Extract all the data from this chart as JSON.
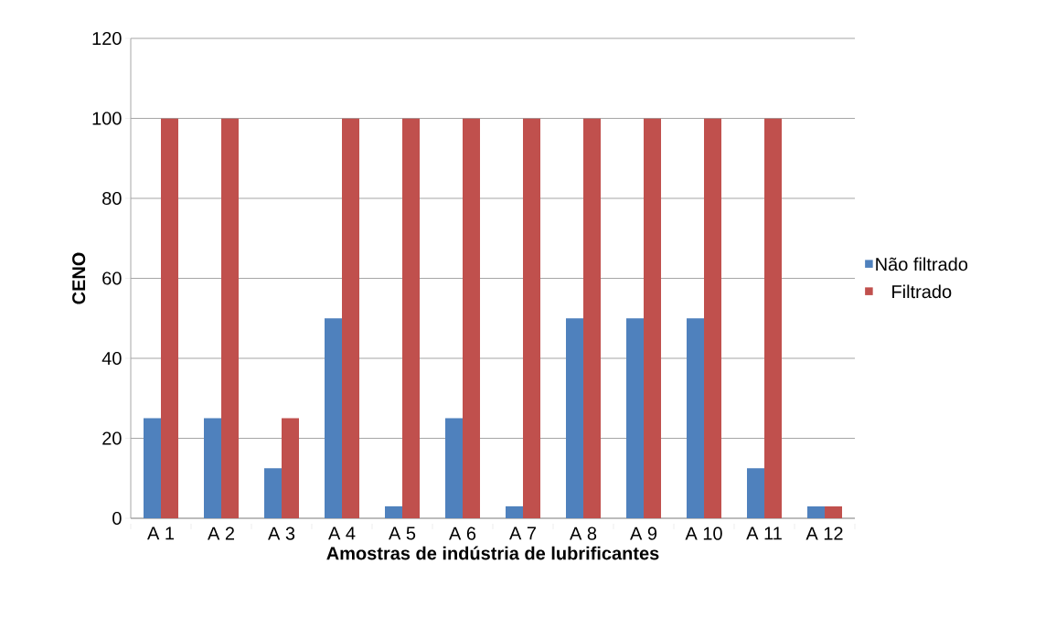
{
  "chart_data": {
    "type": "bar",
    "xlabel": "Amostras de indústria de lubrificantes",
    "ylabel": "CENO",
    "categories": [
      "A 1",
      "A 2",
      "A 3",
      "A 4",
      "A 5",
      "A 6",
      "A 7",
      "A 8",
      "A 9",
      "A 10",
      "A 11",
      "A 12"
    ],
    "series": [
      {
        "name": "Não filtrado",
        "color": "#4f81bd",
        "values": [
          25,
          25,
          12.5,
          50,
          3,
          25,
          3,
          50,
          50,
          50,
          12.5,
          3
        ]
      },
      {
        "name": "Filtrado",
        "color": "#c0504d",
        "values": [
          100,
          100,
          25,
          100,
          100,
          100,
          100,
          100,
          100,
          100,
          100,
          3
        ]
      }
    ],
    "ylim": [
      0,
      120
    ],
    "yticks": [
      0,
      20,
      40,
      60,
      80,
      100,
      120
    ],
    "grid": "y",
    "legend": "right"
  }
}
